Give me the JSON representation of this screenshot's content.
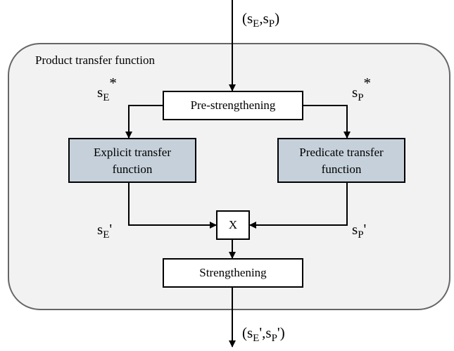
{
  "container": {
    "title": "Product transfer function"
  },
  "input_label": {
    "parts": [
      "(s",
      "E",
      ",s",
      "P",
      ")"
    ]
  },
  "output_label": {
    "parts": [
      "(s",
      "E",
      "',s",
      "P",
      "')"
    ]
  },
  "nodes": [
    {
      "label": [
        "Pre-strengthening"
      ]
    },
    {
      "label": [
        "Explicit transfer",
        "function"
      ]
    },
    {
      "label": [
        "Predicate transfer",
        "function"
      ]
    },
    {
      "label": [
        "X"
      ]
    },
    {
      "label": [
        "Strengthening"
      ]
    }
  ],
  "edge_labels": [
    {
      "parts": [
        "s",
        "E",
        "*"
      ]
    },
    {
      "parts": [
        "s",
        "P",
        "*"
      ]
    },
    {
      "parts": [
        "s",
        "E",
        "'"
      ]
    },
    {
      "parts": [
        "s",
        "P",
        "'"
      ]
    }
  ]
}
